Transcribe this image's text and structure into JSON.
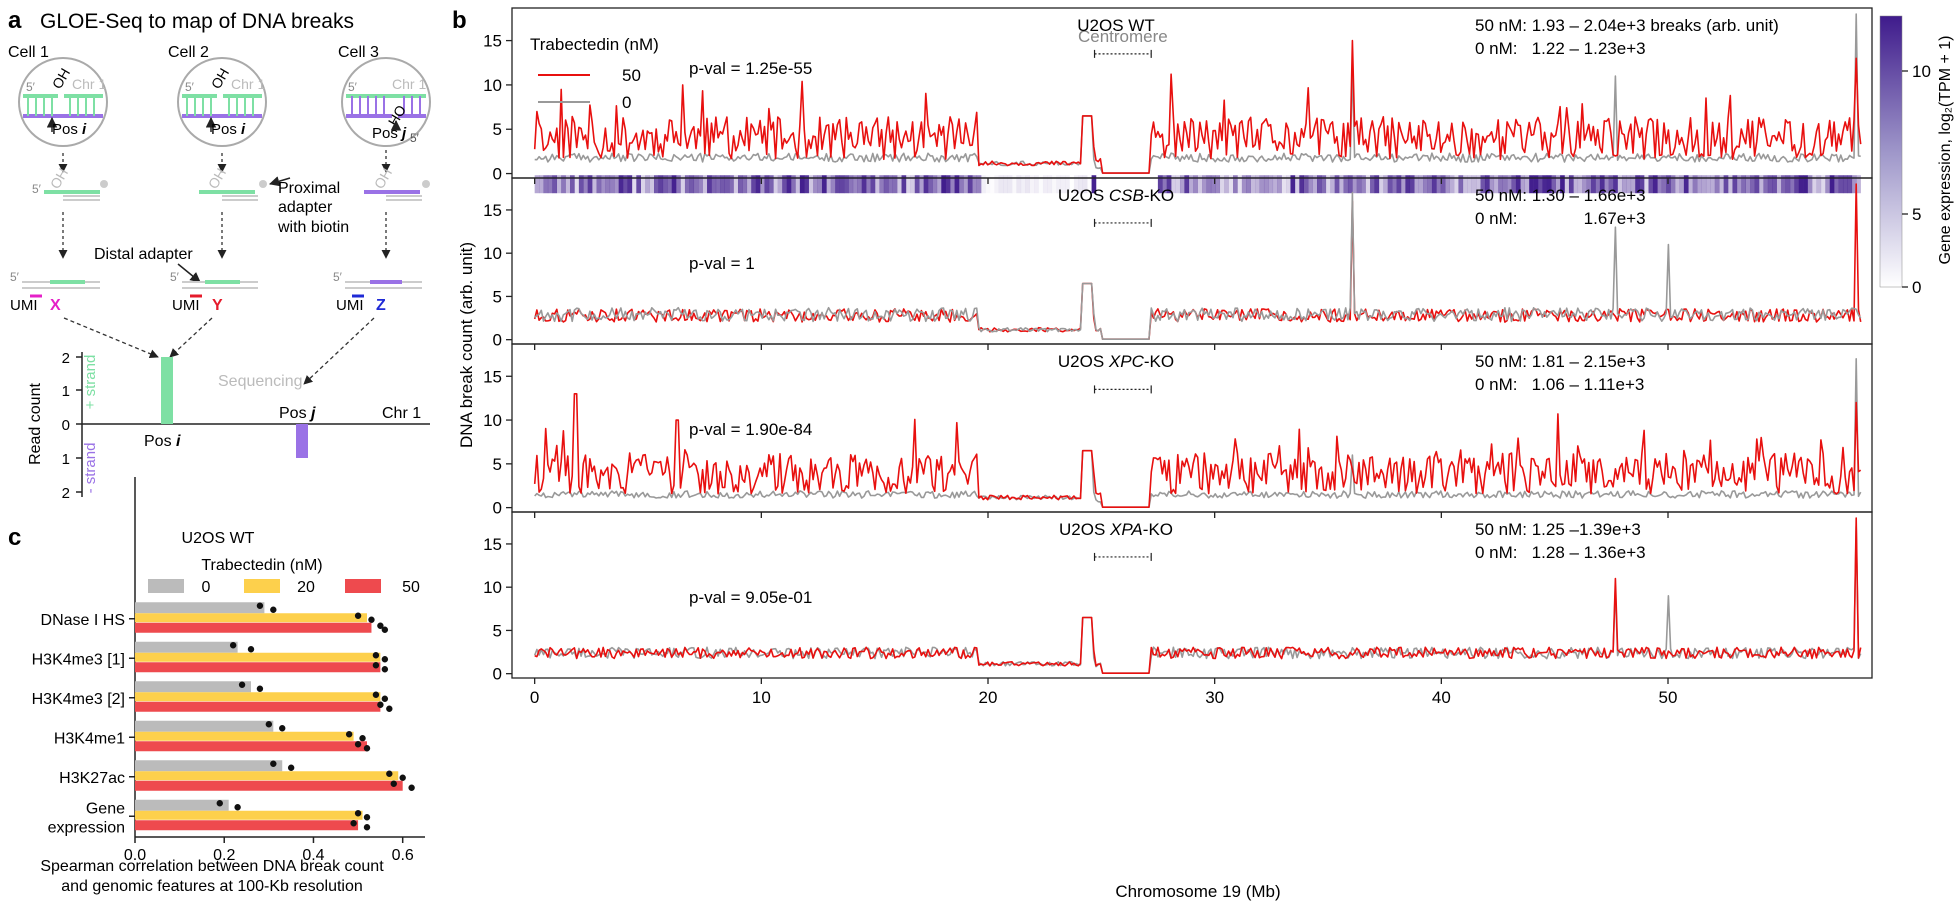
{
  "colors": {
    "red": "#e8100f",
    "gray": "#999999",
    "green": "#7ee0a4",
    "purple": "#9a72e6",
    "yellow": "#fdd04c",
    "bar_red": "#ee4a4e",
    "bar_gray": "#bbbbbb",
    "heat_dark": "#3f1b8c",
    "umi_x": "#e520c8",
    "umi_y": "#e51b2b",
    "umi_z": "#1f2ad6"
  },
  "panel_a": {
    "letter": "a",
    "title": "GLOE-Seq to map of DNA breaks",
    "cells": [
      "Cell 1",
      "Cell 2",
      "Cell 3"
    ],
    "prime5": "5′",
    "chr": "Chr 1",
    "oh": "OH",
    "ho": "HO",
    "pos_i": "Pos ",
    "pos_j": "Pos ",
    "i": "i",
    "j": "j",
    "proximal": [
      "Proximal",
      "adapter",
      "with biotin"
    ],
    "distal": "Distal adapter",
    "umi": "UMI",
    "x": "X",
    "y": "Y",
    "z": "Z",
    "sequencing": "Sequencing",
    "ylabel": "Read count",
    "plus_strand": "+ strand",
    "minus_strand": "- strand",
    "yticks": [
      "2",
      "1",
      "0",
      "1",
      "2"
    ],
    "axis_pos_i": "Pos ",
    "axis_pos_j": "Pos ",
    "axis_chr": "Chr 1"
  },
  "chart_data": [
    {
      "type": "bar",
      "panel": "c",
      "title": "U2OS WT",
      "legend_title": "Trabectedin (nM)",
      "legend": [
        "0",
        "20",
        "50"
      ],
      "categories": [
        "DNase I HS",
        "H3K4me3 [1]",
        "H3K4me3 [2]",
        "H3K4me1",
        "H3K27ac",
        "Gene\nexpression"
      ],
      "series": [
        {
          "name": "0",
          "values": [
            0.29,
            0.23,
            0.26,
            0.31,
            0.33,
            0.21
          ],
          "replicates": [
            [
              0.28,
              0.31
            ],
            [
              0.22,
              0.26
            ],
            [
              0.24,
              0.28
            ],
            [
              0.3,
              0.33
            ],
            [
              0.31,
              0.35
            ],
            [
              0.19,
              0.23
            ]
          ]
        },
        {
          "name": "20",
          "values": [
            0.52,
            0.55,
            0.55,
            0.49,
            0.59,
            0.51
          ],
          "replicates": [
            [
              0.5,
              0.53
            ],
            [
              0.54,
              0.56
            ],
            [
              0.54,
              0.56
            ],
            [
              0.48,
              0.51
            ],
            [
              0.57,
              0.6
            ],
            [
              0.5,
              0.52
            ]
          ]
        },
        {
          "name": "50",
          "values": [
            0.53,
            0.55,
            0.55,
            0.52,
            0.6,
            0.5
          ],
          "replicates": [
            [
              0.55,
              0.56
            ],
            [
              0.54,
              0.56
            ],
            [
              0.55,
              0.57
            ],
            [
              0.5,
              0.52
            ],
            [
              0.58,
              0.62
            ],
            [
              0.49,
              0.52
            ]
          ]
        }
      ],
      "xlim": [
        0,
        0.65
      ],
      "xticks": [
        "0.0",
        "0.2",
        "0.4",
        "0.6"
      ],
      "xlabel": "Spearman correlation between DNA break count\nand genomic features at 100-Kb resolution"
    },
    {
      "type": "line",
      "panel": "b",
      "xlabel": "Chromosome 19 (Mb)",
      "ylabel": "DNA break count (arb. unit)",
      "xlim": [
        -1,
        59
      ],
      "ylim": [
        -0.5,
        18
      ],
      "xticks": [
        "0",
        "10",
        "20",
        "30",
        "40",
        "50"
      ],
      "yticks": [
        "0",
        "5",
        "10",
        "15"
      ],
      "legend_title": "Trabectedin (nM)",
      "legend": [
        "50",
        "0"
      ],
      "centromere_label": "Centromere",
      "centromere": [
        24.7,
        27.2
      ],
      "colorbar_label": "Gene expression, log₂(TPM + 1)",
      "colorbar_ticks": [
        "0",
        "5",
        "10"
      ],
      "subplots": [
        {
          "title": "U2OS WT",
          "title_pre": "U2OS ",
          "title_it": "",
          "title_post": "WT",
          "pval": "p-val = 1.25e-55",
          "stat50": "50 nM: 1.93 – 2.04e+3 breaks (arb. unit)",
          "stat0": "0 nM:   1.22 – 1.23e+3",
          "level50": 4.0,
          "level0": 1.8
        },
        {
          "title": "U2OS CSB-KO",
          "title_pre": "U2OS ",
          "title_it": "CSB",
          "title_post": "-KO",
          "pval": "p-val = 1",
          "stat50": "50 nM: 1.30 – 1.66e+3",
          "stat0": "0 nM:              1.67e+3",
          "level50": 2.8,
          "level0": 2.9
        },
        {
          "title": "U2OS XPC-KO",
          "title_pre": "U2OS ",
          "title_it": "XPC",
          "title_post": "-KO",
          "pval": "p-val = 1.90e-84",
          "stat50": "50 nM: 1.81 – 2.15e+3",
          "stat0": "0 nM:   1.06 – 1.11e+3",
          "level50": 3.9,
          "level0": 1.5
        },
        {
          "title": "U2OS XPA-KO",
          "title_pre": "U2OS ",
          "title_it": "XPA",
          "title_post": "-KO",
          "pval": "p-val = 9.05e-01",
          "stat50": "50 nM: 1.25 –1.39e+3",
          "stat0": "0 nM:   1.28 – 1.36e+3",
          "level50": 2.4,
          "level0": 2.4
        }
      ]
    }
  ],
  "panel_letters": {
    "b": "b",
    "c": "c"
  }
}
